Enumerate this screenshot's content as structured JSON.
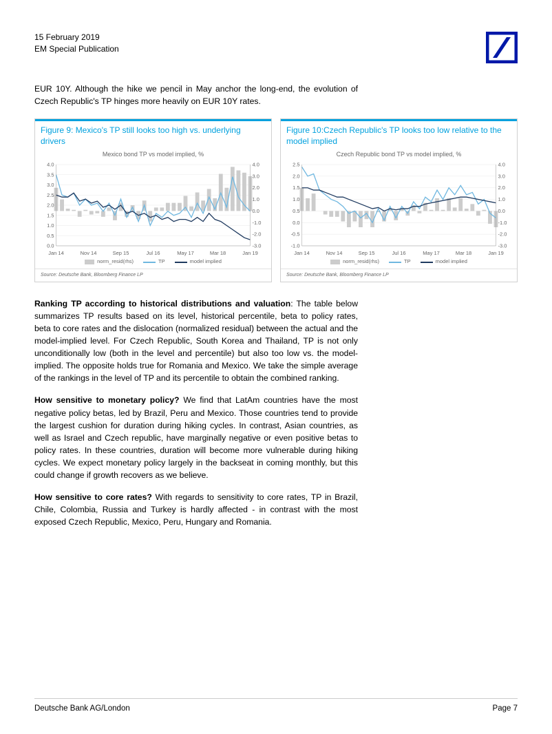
{
  "header": {
    "date": "15 February 2019",
    "pub": "EM Special Publication"
  },
  "logo": {
    "bg": "#ffffff",
    "border": "#0018a8",
    "slash": "#0018a8"
  },
  "intro": "EUR 10Y. Although the hike we pencil in May anchor the long-end, the evolution of Czech Republic's TP hinges more heavily on EUR 10Y rates.",
  "fig9": {
    "title": "Figure 9: Mexico's TP still looks too high vs. underlying drivers",
    "subtitle": "Mexico bond TP vs model implied, %",
    "source": "Source: Deutsche Bank, Bloomberg Finance LP",
    "x_labels": [
      "Jan 14",
      "Nov 14",
      "Sep 15",
      "Jul 16",
      "May 17",
      "Mar 18",
      "Jan 19"
    ],
    "y_left": {
      "min": 0.0,
      "max": 4.0,
      "step": 0.5
    },
    "y_right": {
      "min": -3.0,
      "max": 4.0,
      "step": 1.0
    },
    "colors": {
      "bars": "#cccccc",
      "tp": "#6fb7e0",
      "model": "#1f3a5f",
      "grid": "#e8e8e8",
      "axis": "#999"
    },
    "legend": {
      "bar": "norm_resid(rhs)",
      "tp": "TP",
      "model": "model implied"
    },
    "tp": [
      3.5,
      2.5,
      2.4,
      2.6,
      2.0,
      2.3,
      2.0,
      2.1,
      1.7,
      2.1,
      1.5,
      2.3,
      1.4,
      1.9,
      1.2,
      2.0,
      1.0,
      1.6,
      1.4,
      1.7,
      1.5,
      1.6,
      1.9,
      1.4,
      2.1,
      1.6,
      2.4,
      1.8,
      2.6,
      1.9,
      3.4,
      2.4,
      2.0,
      1.7
    ],
    "model": [
      2.5,
      2.4,
      2.4,
      2.6,
      2.2,
      2.3,
      2.1,
      2.2,
      1.9,
      2.0,
      1.8,
      2.0,
      1.6,
      1.7,
      1.5,
      1.6,
      1.4,
      1.5,
      1.3,
      1.4,
      1.2,
      1.3,
      1.3,
      1.2,
      1.4,
      1.2,
      1.6,
      1.3,
      1.2,
      1.0,
      0.8,
      0.6,
      0.4,
      0.3
    ],
    "bars": [
      2.0,
      1.0,
      0.2,
      0.1,
      -0.5,
      0.1,
      -0.3,
      -0.2,
      -0.5,
      0.3,
      -0.8,
      0.7,
      -0.5,
      0.5,
      -0.7,
      0.9,
      -0.9,
      0.3,
      0.3,
      0.7,
      0.7,
      0.7,
      1.3,
      0.4,
      1.6,
      0.9,
      1.9,
      1.1,
      3.2,
      2.0,
      3.8,
      3.5,
      3.3,
      3.0
    ]
  },
  "fig10": {
    "title": "Figure 10:Czech Republic's TP looks too low relative to the model implied",
    "subtitle": "Czech Republic bond TP vs model implied, %",
    "source": "Source: Deutsche Bank, Bloomberg Finance LP",
    "x_labels": [
      "Jan 14",
      "Nov 14",
      "Sep 15",
      "Jul 16",
      "May 17",
      "Mar 18",
      "Jan 19"
    ],
    "y_left": {
      "min": -1.0,
      "max": 2.5,
      "step": 0.5
    },
    "y_right": {
      "min": -3.0,
      "max": 4.0,
      "step": 1.0
    },
    "colors": {
      "bars": "#cccccc",
      "tp": "#6fb7e0",
      "model": "#1f3a5f",
      "grid": "#e8e8e8",
      "axis": "#999"
    },
    "legend": {
      "bar": "norm_resid(rhs)",
      "tp": "TP",
      "model": "model implied"
    },
    "tp": [
      2.4,
      2.0,
      2.1,
      1.4,
      1.2,
      1.0,
      0.9,
      0.7,
      0.4,
      0.5,
      0.2,
      0.4,
      0.0,
      0.6,
      0.1,
      0.7,
      0.2,
      0.7,
      0.4,
      0.9,
      0.6,
      1.1,
      0.9,
      1.4,
      1.0,
      1.5,
      1.2,
      1.6,
      1.2,
      1.3,
      0.8,
      1.0,
      0.4,
      0.2
    ],
    "model": [
      1.5,
      1.5,
      1.4,
      1.4,
      1.3,
      1.2,
      1.1,
      1.1,
      1.0,
      0.9,
      0.8,
      0.7,
      0.6,
      0.65,
      0.5,
      0.6,
      0.55,
      0.6,
      0.6,
      0.7,
      0.7,
      0.8,
      0.85,
      0.9,
      0.95,
      1.0,
      1.05,
      1.1,
      1.1,
      1.05,
      1.0,
      0.95,
      0.9,
      0.85
    ],
    "bars": [
      2.0,
      1.1,
      1.5,
      0.0,
      -0.3,
      -0.5,
      -0.5,
      -0.9,
      -1.4,
      -0.9,
      -1.4,
      -0.7,
      -1.4,
      -0.1,
      -0.9,
      0.2,
      -0.8,
      0.2,
      -0.4,
      0.5,
      -0.2,
      0.7,
      0.1,
      1.1,
      0.1,
      1.1,
      0.3,
      1.1,
      0.2,
      0.6,
      -0.4,
      0.1,
      -1.1,
      -1.4
    ]
  },
  "para1_bold": "Ranking TP according to historical distributions and valuation",
  "para1": ": The table below summarizes TP results based on its level, historical percentile, beta to policy rates, beta to core rates and the dislocation (normalized residual) between the actual and the model-implied level. For Czech Republic, South Korea and Thailand, TP is not only unconditionally low (both in the level and percentile) but also too low vs. the model-implied. The opposite holds true for Romania and Mexico. We take the simple average of the rankings in the level of TP and its percentile to obtain the combined ranking.",
  "para2_bold": "How sensitive to monetary policy?",
  "para2": " We find that LatAm countries have the most negative policy betas, led by Brazil, Peru and Mexico. Those countries tend to provide the largest cushion for duration during hiking cycles. In contrast, Asian countries, as well as Israel and Czech republic, have marginally negative or even positive betas to policy rates. In these countries, duration will become more vulnerable during hiking cycles. We expect monetary policy largely in the backseat in coming monthly, but this could change if growth recovers as we believe.",
  "para3_bold": "How sensitive to core rates?",
  "para3": " With regards to sensitivity to core rates, TP in Brazil, Chile, Colombia, Russia and Turkey is hardly affected - in contrast with the most exposed Czech Republic, Mexico, Peru, Hungary and Romania.",
  "footer": {
    "left": "Deutsche Bank AG/London",
    "right": "Page 7"
  }
}
